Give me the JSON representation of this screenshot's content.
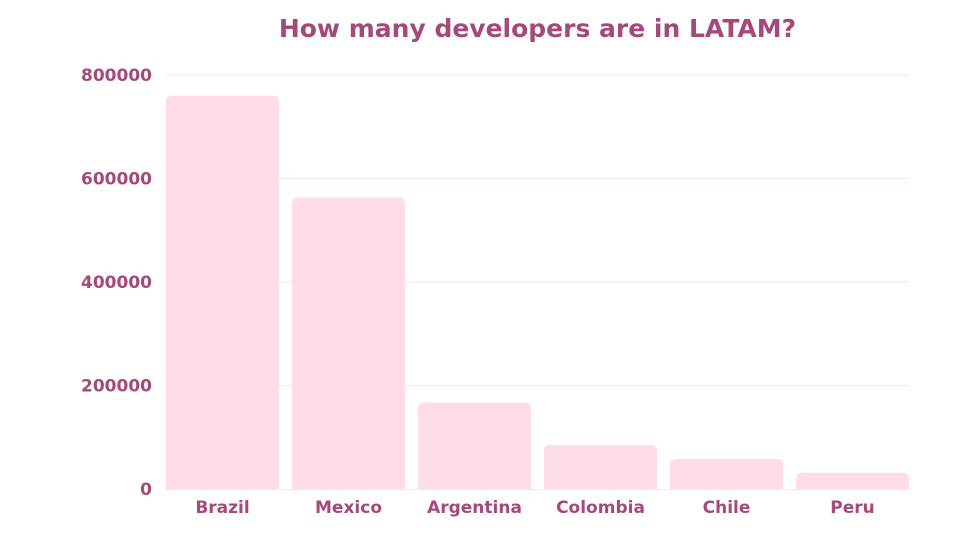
{
  "chart_data": {
    "type": "bar",
    "title": "How many developers are in LATAM?",
    "categories": [
      "Brazil",
      "Mexico",
      "Argentina",
      "Colombia",
      "Chile",
      "Peru"
    ],
    "values": [
      760000,
      563000,
      167000,
      85000,
      58000,
      31500
    ],
    "xlabel": "",
    "ylabel": "",
    "ylim": [
      0,
      800000
    ],
    "yticks": [
      "0",
      "200000",
      "400000",
      "600000",
      "800000"
    ],
    "grid": true,
    "colors": {
      "bar": "#ffdde8",
      "text": "#a4497a",
      "grid": "#f7e4ec"
    }
  }
}
